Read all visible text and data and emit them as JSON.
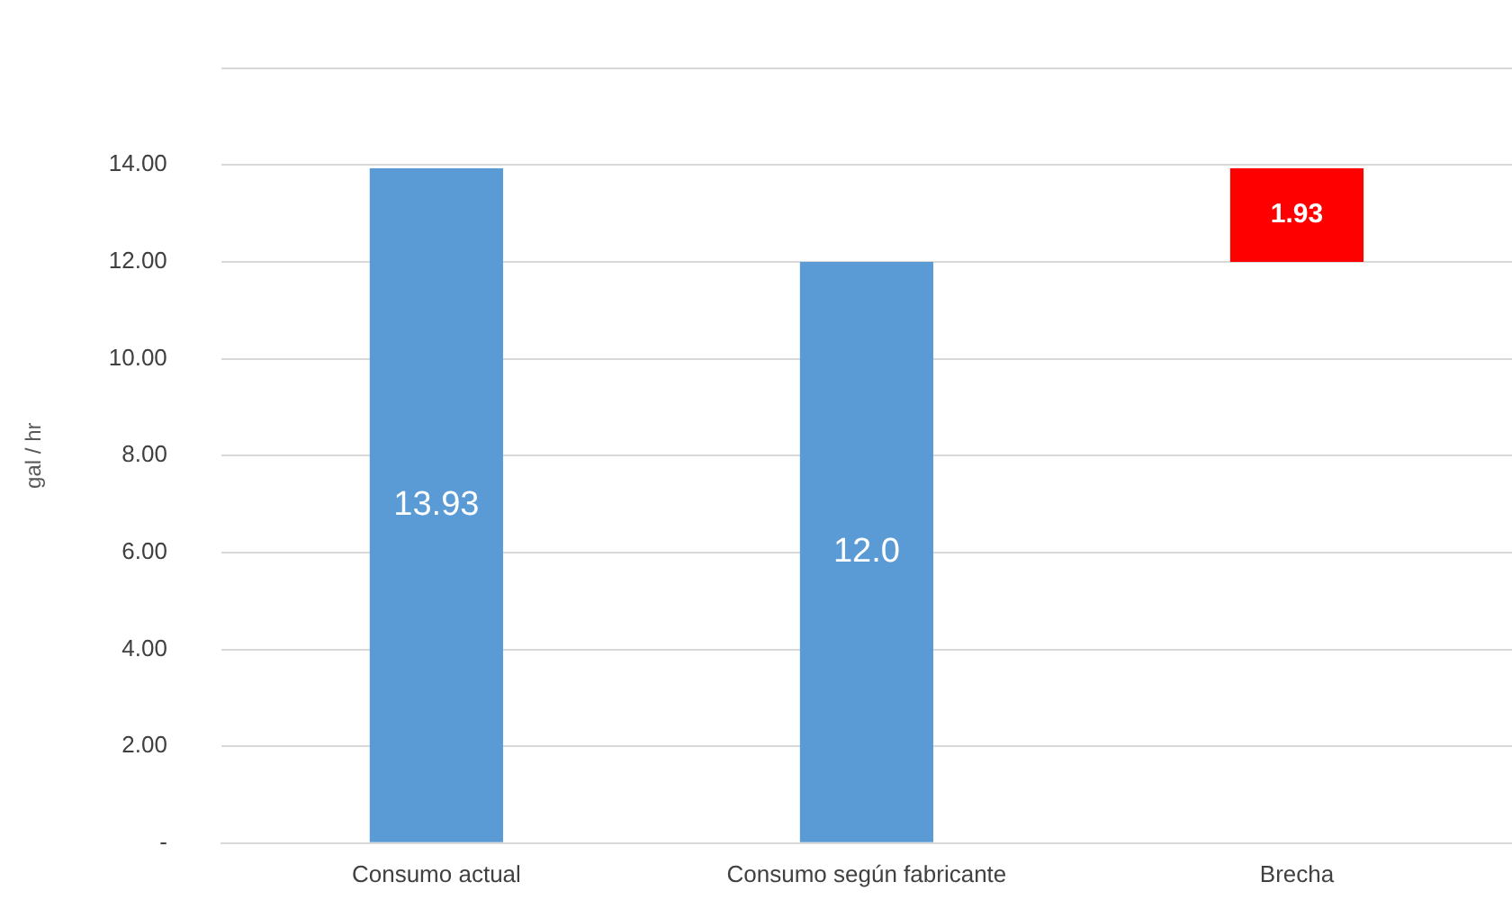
{
  "chart_data": {
    "type": "bar",
    "ylabel": "gal / hr",
    "categories": [
      "Consumo actual",
      "Consumo según fabricante",
      "Brecha"
    ],
    "values": [
      13.93,
      12.0,
      1.93
    ],
    "base": [
      0,
      0,
      12
    ],
    "colors": [
      "#5b9bd5",
      "#5b9bd5",
      "#ff0000"
    ],
    "value_labels": [
      "13.93",
      "12.0",
      "1.93"
    ],
    "ylim": [
      0,
      16
    ],
    "yticks": [
      {
        "value": 0,
        "label": "-"
      },
      {
        "value": 2,
        "label": "2.00"
      },
      {
        "value": 4,
        "label": "4.00"
      },
      {
        "value": 6,
        "label": "6.00"
      },
      {
        "value": 8,
        "label": "8.00"
      },
      {
        "value": 10,
        "label": "10.00"
      },
      {
        "value": 12,
        "label": "12.00"
      },
      {
        "value": 14,
        "label": "14.00"
      },
      {
        "value": 16,
        "label": null
      }
    ],
    "grid": "y"
  }
}
